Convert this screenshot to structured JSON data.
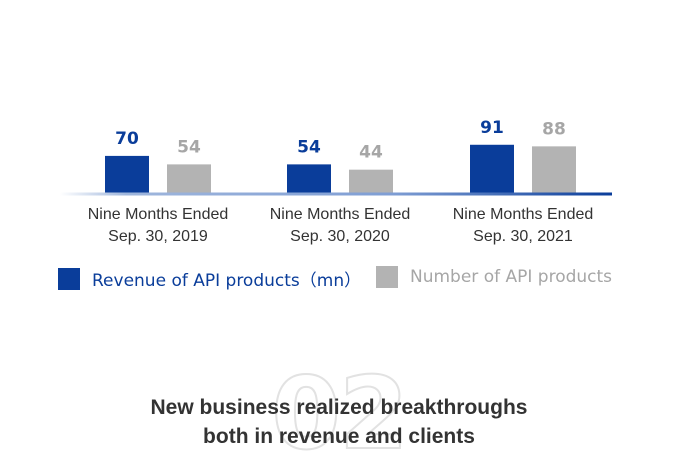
{
  "chart_data": {
    "type": "bar",
    "categories": [
      [
        "Nine Months Ended",
        "Sep. 30, 2019"
      ],
      [
        "Nine Months Ended",
        "Sep. 30, 2020"
      ],
      [
        "Nine Months Ended",
        "Sep. 30, 2021"
      ]
    ],
    "series": [
      {
        "name": "Revenue of API products（mn）",
        "values": [
          70,
          54,
          91
        ],
        "color": "#0a3d9a"
      },
      {
        "name": "Number of API products",
        "values": [
          54,
          44,
          88
        ],
        "color": "#b3b3b3"
      }
    ],
    "legend_position": "bottom-left",
    "grid": false
  },
  "section": {
    "number": "02",
    "title_line1": "New business realized breakthroughs",
    "title_line2": "both in revenue and clients"
  }
}
